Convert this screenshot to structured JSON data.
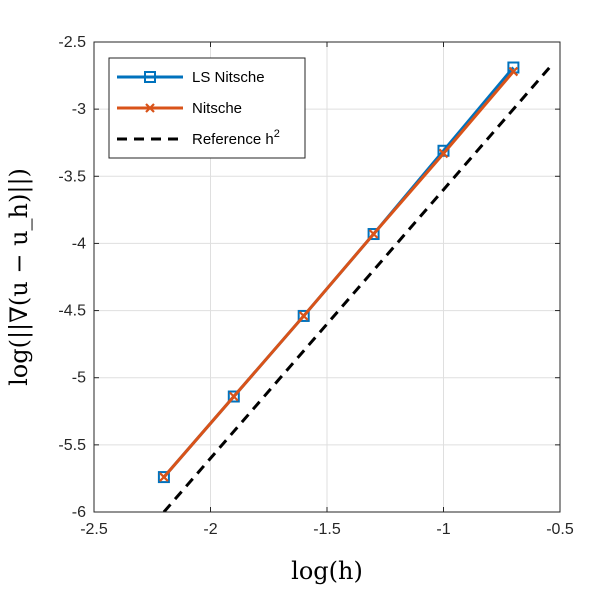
{
  "chart_data": {
    "type": "line",
    "xlabel": "log(h)",
    "ylabel": "log(||∇(u − u_h)||)",
    "xlim": [
      -2.5,
      -0.5
    ],
    "ylim": [
      -6,
      -2.5
    ],
    "xticks": [
      "-2.5",
      "-2",
      "-1.5",
      "-1",
      "-0.5"
    ],
    "yticks": [
      "-2.5",
      "-3",
      "-3.5",
      "-4",
      "-4.5",
      "-5",
      "-5.5",
      "-6"
    ],
    "grid": true,
    "legend_position": "top-left",
    "series": [
      {
        "name": "LS Nitsche",
        "color": "#0072BD",
        "marker": "square",
        "x": [
          -2.2,
          -1.9,
          -1.6,
          -1.3,
          -1.0,
          -0.7
        ],
        "y": [
          -5.74,
          -5.14,
          -4.54,
          -3.93,
          -3.31,
          -2.69
        ]
      },
      {
        "name": "Nitsche",
        "color": "#D95319",
        "marker": "x",
        "x": [
          -2.2,
          -1.9,
          -1.6,
          -1.3,
          -1.0,
          -0.7
        ],
        "y": [
          -5.74,
          -5.14,
          -4.54,
          -3.93,
          -3.33,
          -2.72
        ]
      },
      {
        "name": "Reference h",
        "name_superscript": "2",
        "color": "#000000",
        "dashed": true,
        "x": [
          -2.2,
          -0.53
        ],
        "y": [
          -6.0,
          -2.66
        ]
      }
    ]
  }
}
